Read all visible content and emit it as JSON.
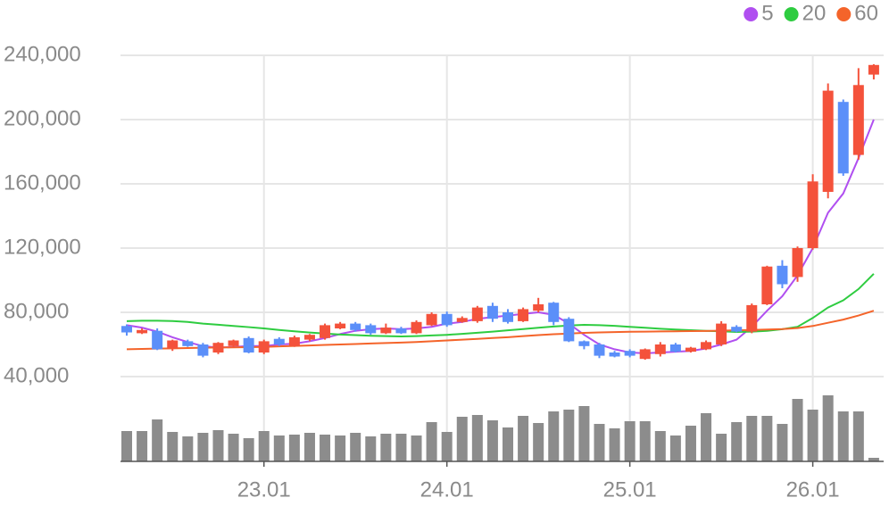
{
  "chart_data": {
    "type": "candlestick",
    "categories": [
      null,
      null,
      null,
      null,
      null,
      null,
      null,
      null,
      null,
      "23.01",
      null,
      null,
      null,
      null,
      null,
      null,
      null,
      null,
      null,
      null,
      null,
      "24.01",
      null,
      null,
      null,
      null,
      null,
      null,
      null,
      null,
      null,
      null,
      null,
      "25.01",
      null,
      null,
      null,
      null,
      null,
      null,
      null,
      null,
      null,
      null,
      null,
      "26.01",
      null,
      null,
      null,
      null
    ],
    "open": [
      71500,
      67000,
      68500,
      57500,
      62000,
      60000,
      55000,
      59000,
      64000,
      55000,
      63500,
      59000,
      63000,
      64000,
      70000,
      73000,
      72000,
      67000,
      70000,
      67000,
      72000,
      79000,
      74000,
      74500,
      84000,
      80000,
      74500,
      81000,
      86000,
      76000,
      62000,
      60000,
      55000,
      56000,
      51000,
      54000,
      60000,
      55500,
      57000,
      60000,
      71000,
      68000,
      85000,
      109000,
      102000,
      120000,
      155000,
      211000,
      178000,
      228000
    ],
    "high": [
      72500,
      70000,
      70000,
      63000,
      63000,
      61000,
      61500,
      63000,
      65000,
      63000,
      64500,
      65500,
      66500,
      73000,
      74000,
      74000,
      73000,
      73000,
      71000,
      75000,
      80000,
      80500,
      77500,
      84000,
      86000,
      82000,
      83000,
      89000,
      86500,
      77000,
      62500,
      61000,
      56000,
      57000,
      57500,
      61500,
      61000,
      58500,
      62500,
      74500,
      72000,
      85500,
      109000,
      112500,
      121000,
      166000,
      222500,
      212500,
      232000,
      234500
    ],
    "low": [
      65500,
      66500,
      56500,
      56000,
      58500,
      52000,
      54000,
      58000,
      54500,
      54000,
      59000,
      58500,
      62000,
      63000,
      69500,
      68000,
      66000,
      66500,
      66500,
      66500,
      71500,
      71000,
      73500,
      73500,
      74000,
      73000,
      74000,
      80000,
      72000,
      61500,
      57000,
      51500,
      52000,
      52000,
      50500,
      52500,
      55000,
      55000,
      56500,
      59000,
      67500,
      67000,
      84500,
      95000,
      99000,
      119000,
      151000,
      165000,
      175000,
      225000
    ],
    "close": [
      67500,
      69000,
      57000,
      62500,
      59000,
      53000,
      61000,
      62500,
      55000,
      62000,
      60000,
      64500,
      66000,
      72000,
      73000,
      69000,
      67000,
      70500,
      67000,
      74000,
      79000,
      72000,
      76500,
      83000,
      76000,
      74000,
      82000,
      85000,
      74000,
      62000,
      59000,
      53000,
      52500,
      53000,
      57000,
      60000,
      55500,
      58000,
      61500,
      73000,
      68000,
      84500,
      108500,
      97500,
      120000,
      161500,
      218000,
      166500,
      221500,
      234000
    ],
    "volume": {
      "color": "#8c8c8c",
      "values": [
        34,
        34,
        47,
        33,
        28,
        32,
        35,
        31,
        26,
        34,
        29,
        30,
        32,
        30,
        29,
        32,
        28,
        31,
        31,
        29,
        44,
        33,
        50,
        52,
        46,
        38,
        51,
        43,
        56,
        58,
        62,
        42,
        37,
        45,
        45,
        34,
        29,
        40,
        54,
        31,
        44,
        51,
        51,
        42,
        70,
        58,
        74,
        56,
        56,
        4
      ]
    },
    "up_color": "#f4523b",
    "down_color": "#5b8ff9",
    "series": [
      {
        "name": "5",
        "color": "#b04ff0",
        "values": [
          72000,
          70500,
          68000,
          64500,
          61500,
          59000,
          58000,
          58500,
          59000,
          59000,
          60000,
          60500,
          62000,
          64000,
          66500,
          68500,
          69500,
          70000,
          69500,
          70000,
          71000,
          73000,
          74000,
          76000,
          77000,
          78000,
          79000,
          80000,
          78500,
          73000,
          66000,
          60000,
          57000,
          55000,
          54500,
          55000,
          55500,
          56000,
          57500,
          60000,
          63000,
          71000,
          81000,
          90000,
          103000,
          120000,
          142000,
          154000,
          176000,
          200000
        ]
      },
      {
        "name": "20",
        "color": "#2ecc40",
        "values": [
          74500,
          74800,
          74800,
          74600,
          74000,
          73000,
          72300,
          71500,
          70800,
          70000,
          69000,
          68200,
          67400,
          66800,
          66200,
          65800,
          65400,
          65200,
          65000,
          65200,
          65600,
          66000,
          66600,
          67300,
          68000,
          68800,
          69600,
          70400,
          71200,
          71800,
          72200,
          72000,
          71600,
          71000,
          70400,
          69800,
          69300,
          68900,
          68500,
          68200,
          67800,
          68000,
          68500,
          69500,
          71000,
          76500,
          83000,
          87500,
          94500,
          104000
        ]
      },
      {
        "name": "60",
        "color": "#f4642a",
        "values": [
          57000,
          57200,
          57400,
          57600,
          57800,
          58000,
          58100,
          58200,
          58300,
          58500,
          58800,
          59100,
          59400,
          59700,
          60000,
          60300,
          60600,
          60900,
          61200,
          61500,
          62000,
          62500,
          63000,
          63500,
          64000,
          64500,
          65200,
          65800,
          66400,
          66800,
          67200,
          67500,
          67700,
          67900,
          68000,
          68100,
          68200,
          68300,
          68400,
          68600,
          68800,
          69000,
          69300,
          69600,
          70200,
          71500,
          73500,
          75500,
          78000,
          81000
        ]
      }
    ],
    "ylim": [
      30000,
      250000
    ],
    "yticks": [
      {
        "value": 40000,
        "label": "40,000"
      },
      {
        "value": 80000,
        "label": "80,000"
      },
      {
        "value": 120000,
        "label": "120,000"
      },
      {
        "value": 160000,
        "label": "160,000"
      },
      {
        "value": 200000,
        "label": "200,000"
      },
      {
        "value": 240000,
        "label": "240,000"
      }
    ],
    "grid": true,
    "legend": "top-right"
  }
}
